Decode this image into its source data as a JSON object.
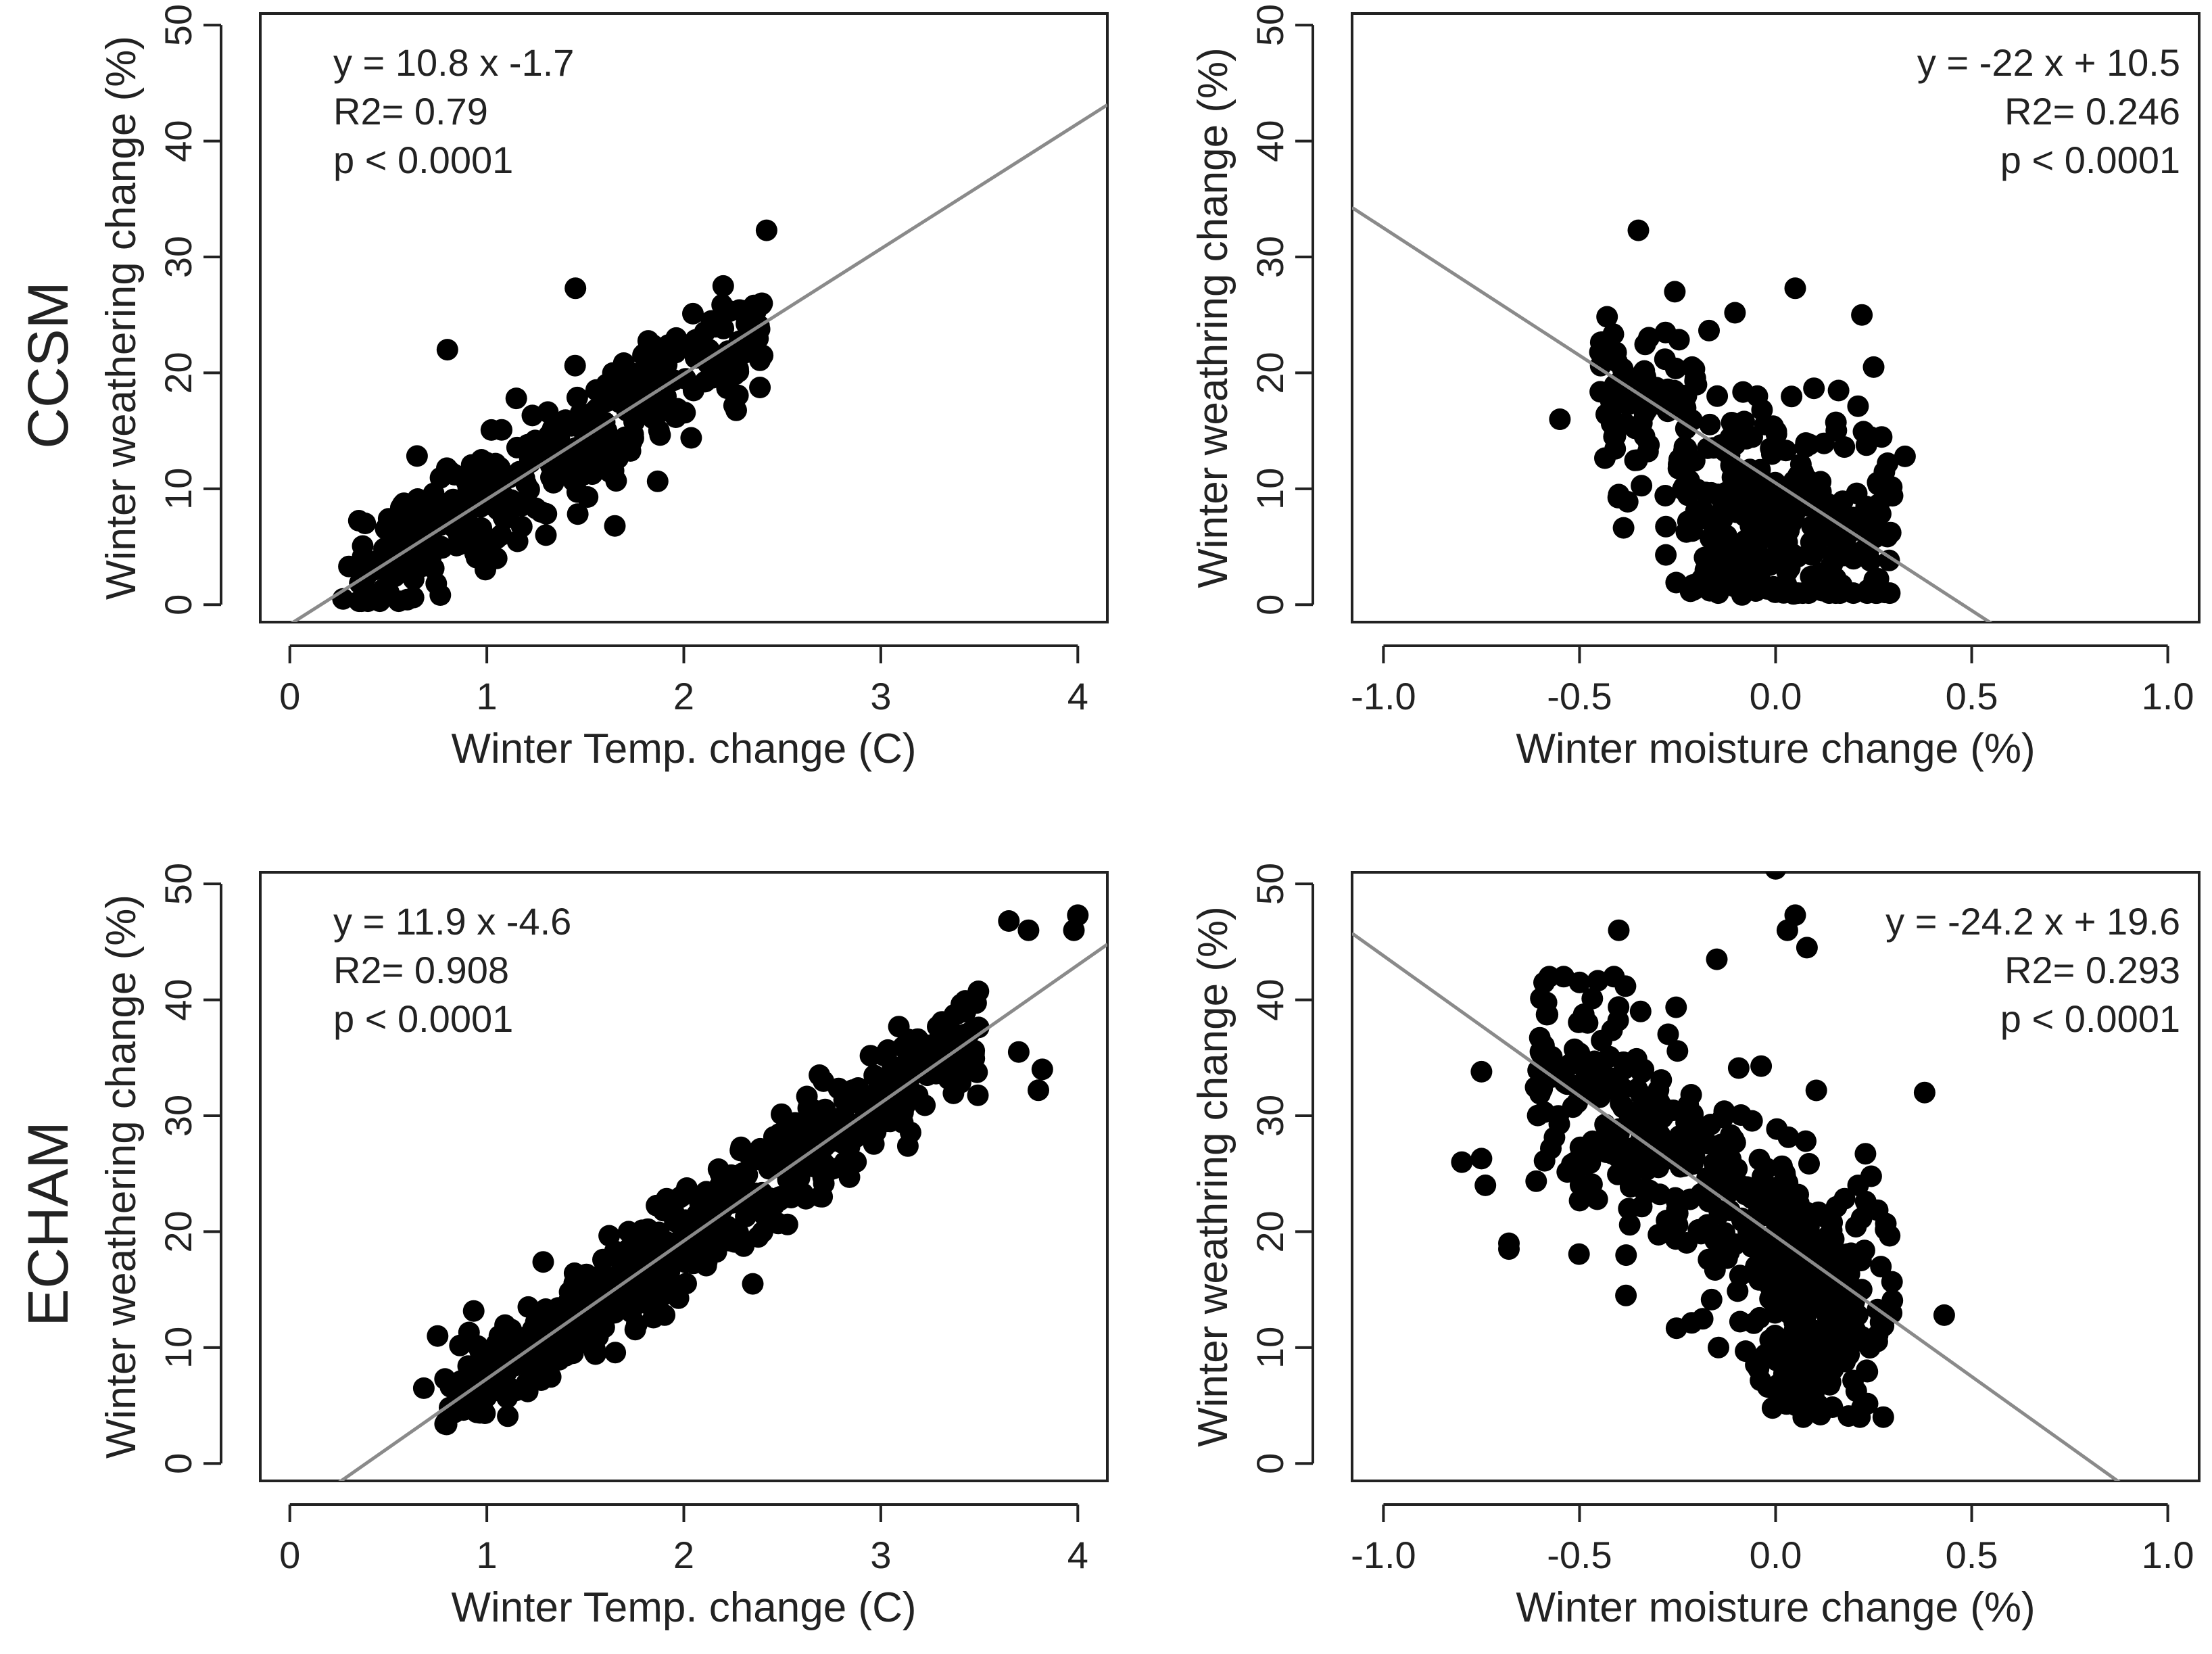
{
  "figure": {
    "row_labels": [
      "CCSM",
      "ECHAM"
    ],
    "point_color": "#000000",
    "fit_line_color": "#8a8a8a",
    "axis_color": "#222222"
  },
  "chart_data": [
    {
      "type": "scatter",
      "model": "CCSM",
      "xlabel": "Winter Temp. change (C)",
      "ylabel": "Winter weathering change (%)",
      "xlim": [
        -0.15,
        4.15
      ],
      "ylim": [
        -1.5,
        51
      ],
      "xticks": [
        0,
        1,
        2,
        3,
        4
      ],
      "xtick_labels": [
        "0",
        "1",
        "2",
        "3",
        "4"
      ],
      "yticks": [
        0,
        10,
        20,
        30,
        40,
        50
      ],
      "ytick_labels": [
        "0",
        "10",
        "20",
        "30",
        "40",
        "50"
      ],
      "annotation": {
        "align": "top-left",
        "lines": [
          "y =  10.8 x  -1.7",
          "R2=  0.79",
          "p < 0.0001"
        ]
      },
      "fit": {
        "slope": 10.8,
        "intercept": -1.7
      },
      "sample": {
        "n": 380,
        "seed": 11,
        "generator": "temp_ccsm"
      },
      "outliers": [
        [
          2.42,
          32.3
        ],
        [
          1.45,
          27.3
        ],
        [
          0.8,
          22.0
        ],
        [
          2.2,
          27.5
        ],
        [
          1.05,
          4.0
        ],
        [
          1.3,
          6.0
        ],
        [
          1.65,
          6.8
        ],
        [
          0.27,
          0.5
        ],
        [
          0.3,
          3.3
        ],
        [
          2.4,
          21.5
        ]
      ]
    },
    {
      "type": "scatter",
      "model": "CCSM",
      "xlabel": "Winter moisture change (%)",
      "ylabel": "Winter weathring change (%)",
      "xlim": [
        -1.08,
        1.08
      ],
      "ylim": [
        -1.5,
        51
      ],
      "xticks": [
        -1.0,
        -0.5,
        0.0,
        0.5,
        1.0
      ],
      "xtick_labels": [
        "-1.0",
        "-0.5",
        "0.0",
        "0.5",
        "1.0"
      ],
      "yticks": [
        0,
        10,
        20,
        30,
        40,
        50
      ],
      "ytick_labels": [
        "0",
        "10",
        "20",
        "30",
        "40",
        "50"
      ],
      "annotation": {
        "align": "top-right",
        "lines": [
          "y =  -22 x + 10.5",
          "R2=  0.246",
          "p < 0.0001"
        ]
      },
      "fit": {
        "slope": -22,
        "intercept": 10.5
      },
      "sample": {
        "n": 380,
        "seed": 23,
        "generator": "moist_ccsm"
      },
      "outliers": [
        [
          -0.35,
          32.3
        ],
        [
          -0.55,
          16.0
        ],
        [
          0.33,
          12.8
        ],
        [
          -0.28,
          4.3
        ],
        [
          0.05,
          27.3
        ],
        [
          0.22,
          25.0
        ],
        [
          -0.4,
          9.5
        ],
        [
          0.25,
          20.5
        ]
      ]
    },
    {
      "type": "scatter",
      "model": "ECHAM",
      "xlabel": "Winter Temp. change (C)",
      "ylabel": "Winter weathering change (%)",
      "xlim": [
        -0.15,
        4.15
      ],
      "ylim": [
        -1.5,
        51
      ],
      "xticks": [
        0,
        1,
        2,
        3,
        4
      ],
      "xtick_labels": [
        "0",
        "1",
        "2",
        "3",
        "4"
      ],
      "yticks": [
        0,
        10,
        20,
        30,
        40,
        50
      ],
      "ytick_labels": [
        "0",
        "10",
        "20",
        "30",
        "40",
        "50"
      ],
      "annotation": {
        "align": "top-left",
        "lines": [
          "y =  11.9 x  -4.6",
          "R2=  0.908",
          "p < 0.0001"
        ]
      },
      "fit": {
        "slope": 11.9,
        "intercept": -4.6
      },
      "sample": {
        "n": 560,
        "seed": 37,
        "generator": "temp_echam"
      },
      "outliers": [
        [
          4.0,
          47.3
        ],
        [
          3.98,
          46.0
        ],
        [
          3.65,
          46.8
        ],
        [
          3.75,
          46.0
        ],
        [
          3.8,
          32.2
        ],
        [
          3.82,
          34.0
        ],
        [
          0.75,
          11.0
        ],
        [
          0.68,
          6.5
        ],
        [
          2.35,
          15.5
        ],
        [
          3.7,
          35.5
        ]
      ]
    },
    {
      "type": "scatter",
      "model": "ECHAM",
      "xlabel": "Winter moisture change (%)",
      "ylabel": "Winter weathring change (%)",
      "xlim": [
        -1.08,
        1.08
      ],
      "ylim": [
        -1.5,
        51
      ],
      "xticks": [
        -1.0,
        -0.5,
        0.0,
        0.5,
        1.0
      ],
      "xtick_labels": [
        "-1.0",
        "-0.5",
        "0.0",
        "0.5",
        "1.0"
      ],
      "yticks": [
        0,
        10,
        20,
        30,
        40,
        50
      ],
      "ytick_labels": [
        "0",
        "10",
        "20",
        "30",
        "40",
        "50"
      ],
      "annotation": {
        "align": "top-right",
        "lines": [
          "y =  -24.2 x + 19.6",
          "R2=  0.293",
          "p < 0.0001"
        ]
      },
      "fit": {
        "slope": -24.2,
        "intercept": 19.6
      },
      "sample": {
        "n": 560,
        "seed": 53,
        "generator": "moist_echam"
      },
      "outliers": [
        [
          0.0,
          51.3
        ],
        [
          -0.4,
          46.0
        ],
        [
          0.05,
          47.3
        ],
        [
          0.03,
          46.0
        ],
        [
          0.08,
          44.5
        ],
        [
          -0.75,
          33.8
        ],
        [
          -0.8,
          26.0
        ],
        [
          -0.75,
          26.3
        ],
        [
          -0.74,
          24.0
        ],
        [
          -0.68,
          19.0
        ],
        [
          -0.68,
          18.5
        ],
        [
          0.43,
          12.8
        ],
        [
          0.38,
          32.0
        ],
        [
          0.22,
          4.8
        ],
        [
          -0.02,
          6.6
        ],
        [
          -0.5,
          41.5
        ],
        [
          -0.15,
          43.5
        ]
      ]
    }
  ]
}
